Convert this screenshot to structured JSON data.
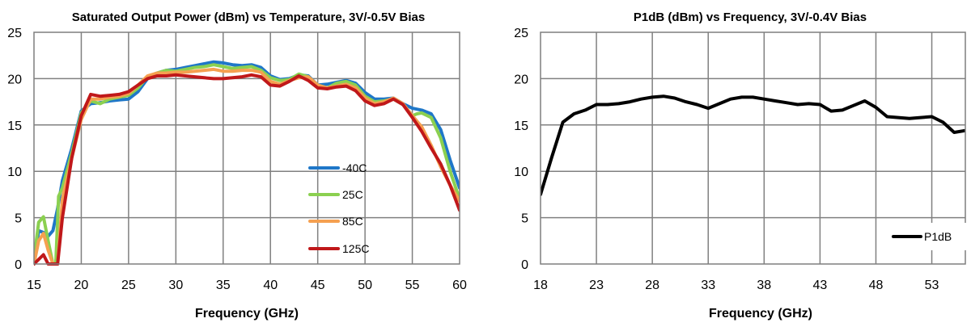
{
  "chart_data": [
    {
      "type": "line",
      "title": "Saturated Output Power (dBm) vs Temperature, 3V/-0.5V Bias",
      "xlabel": "Frequency (GHz)",
      "ylabel": "",
      "xlim": [
        15,
        60
      ],
      "ylim": [
        0,
        25
      ],
      "xticks": [
        "15",
        "20",
        "25",
        "30",
        "35",
        "40",
        "45",
        "50",
        "55",
        "60"
      ],
      "yticks": [
        "0",
        "5",
        "10",
        "15",
        "20",
        "25"
      ],
      "grid": true,
      "legend_position": "lower-right",
      "series": [
        {
          "name": "-40C",
          "color": "#1f77c8",
          "x": [
            15,
            15.5,
            16,
            16.5,
            17,
            17.5,
            18,
            19,
            20,
            21,
            22,
            23,
            24,
            25,
            26,
            27,
            28,
            29,
            30,
            31,
            32,
            33,
            34,
            35,
            36,
            37,
            38,
            39,
            40,
            41,
            42,
            43,
            44,
            45,
            46,
            47,
            48,
            49,
            50,
            51,
            52,
            53,
            54,
            55,
            56,
            57,
            58,
            59,
            60
          ],
          "y": [
            0,
            3.6,
            3.4,
            3,
            3.6,
            6,
            9,
            12.5,
            16.5,
            17.3,
            17.4,
            17.6,
            17.7,
            17.8,
            18.6,
            20,
            20.6,
            20.9,
            21.0,
            21.2,
            21.4,
            21.6,
            21.8,
            21.7,
            21.5,
            21.4,
            21.5,
            21.2,
            20.3,
            19.9,
            20.0,
            20.4,
            20.3,
            19.3,
            19.4,
            19.6,
            19.8,
            19.5,
            18.5,
            17.8,
            17.8,
            17.9,
            17.3,
            16.8,
            16.6,
            16.2,
            14.5,
            11.2,
            8.2
          ]
        },
        {
          "name": "25C",
          "color": "#8bd050",
          "x": [
            15,
            15.5,
            16,
            16.5,
            17,
            17.3,
            17.6,
            18,
            19,
            20,
            21,
            22,
            23,
            24,
            25,
            26,
            27,
            28,
            29,
            30,
            31,
            32,
            33,
            34,
            35,
            36,
            37,
            38,
            39,
            40,
            41,
            42,
            43,
            44,
            45,
            46,
            47,
            48,
            49,
            50,
            51,
            52,
            53,
            54,
            55,
            55.5,
            56,
            57,
            58,
            59,
            60
          ],
          "y": [
            0.5,
            4.5,
            5.1,
            2.5,
            0,
            0,
            7.3,
            8.2,
            12,
            16.3,
            17.6,
            17.3,
            17.8,
            18.0,
            18.2,
            19.0,
            20.2,
            20.6,
            20.9,
            20.8,
            21.0,
            21.2,
            21.3,
            21.5,
            21.3,
            21.1,
            21.2,
            21.3,
            20.9,
            20.1,
            19.8,
            19.9,
            20.5,
            20.2,
            19.3,
            19.0,
            19.5,
            19.7,
            19.3,
            18.1,
            17.5,
            17.6,
            17.8,
            17.2,
            16.0,
            16.2,
            16.3,
            15.8,
            13.6,
            10.0,
            7.0
          ]
        },
        {
          "name": "85C",
          "color": "#f5a050",
          "x": [
            15,
            15.5,
            16,
            16.5,
            17,
            17.5,
            18,
            19,
            20,
            21,
            22,
            23,
            24,
            25,
            26,
            27,
            28,
            29,
            30,
            31,
            32,
            33,
            34,
            35,
            36,
            37,
            38,
            39,
            40,
            41,
            42,
            43,
            44,
            45,
            46,
            47,
            48,
            49,
            50,
            51,
            52,
            53,
            54,
            55,
            56,
            57,
            58,
            59,
            60
          ],
          "y": [
            0,
            2.5,
            3.3,
            1.5,
            0,
            0,
            7,
            11.5,
            15.6,
            17.8,
            17.8,
            18.0,
            18.1,
            18.4,
            19.3,
            20.3,
            20.6,
            20.6,
            20.7,
            20.7,
            20.8,
            20.9,
            21.0,
            20.8,
            20.8,
            20.9,
            20.9,
            20.7,
            19.7,
            19.4,
            19.8,
            20.1,
            20.2,
            19.3,
            19.0,
            19.2,
            19.4,
            19.0,
            17.9,
            17.3,
            17.5,
            17.9,
            17.3,
            16.0,
            14.8,
            12.8,
            10.5,
            8.5,
            6.8
          ]
        },
        {
          "name": "125C",
          "color": "#c0181a",
          "x": [
            15,
            15.5,
            16,
            16.5,
            17,
            17.5,
            18,
            19,
            20,
            21,
            22,
            23,
            24,
            25,
            26,
            27,
            28,
            29,
            30,
            31,
            32,
            33,
            34,
            35,
            36,
            37,
            38,
            39,
            40,
            41,
            42,
            43,
            44,
            45,
            46,
            47,
            48,
            49,
            50,
            51,
            52,
            53,
            54,
            55,
            56,
            57,
            58,
            59,
            60
          ],
          "y": [
            0,
            0.5,
            1.0,
            0,
            0,
            0,
            5,
            11.5,
            16,
            18.3,
            18.1,
            18.2,
            18.3,
            18.6,
            19.3,
            20.0,
            20.3,
            20.3,
            20.4,
            20.3,
            20.2,
            20.1,
            20.0,
            20.0,
            20.1,
            20.2,
            20.4,
            20.2,
            19.3,
            19.2,
            19.7,
            20.3,
            19.8,
            19.0,
            18.9,
            19.1,
            19.2,
            18.7,
            17.6,
            17.1,
            17.3,
            17.8,
            17.2,
            15.8,
            14.3,
            12.5,
            10.8,
            8.5,
            5.8
          ]
        }
      ]
    },
    {
      "type": "line",
      "title": "P1dB (dBm) vs Frequency, 3V/-0.4V Bias",
      "xlabel": "Frequency (GHz)",
      "ylabel": "",
      "xlim": [
        18,
        56
      ],
      "ylim": [
        0,
        25
      ],
      "xticks": [
        "18",
        "23",
        "28",
        "33",
        "38",
        "43",
        "48",
        "53"
      ],
      "yticks": [
        "0",
        "5",
        "10",
        "15",
        "20",
        "25"
      ],
      "grid": true,
      "legend_position": "lower-right",
      "series": [
        {
          "name": "P1dB",
          "color": "#000000",
          "x": [
            18,
            19,
            20,
            21,
            22,
            23,
            24,
            25,
            26,
            27,
            28,
            29,
            30,
            31,
            32,
            33,
            34,
            35,
            36,
            37,
            38,
            39,
            40,
            41,
            42,
            43,
            44,
            45,
            46,
            47,
            48,
            49,
            50,
            51,
            52,
            53,
            54,
            55,
            56
          ],
          "y": [
            7.5,
            11.5,
            15.3,
            16.2,
            16.6,
            17.2,
            17.2,
            17.3,
            17.5,
            17.8,
            18.0,
            18.1,
            17.9,
            17.5,
            17.2,
            16.8,
            17.3,
            17.8,
            18.0,
            18.0,
            17.8,
            17.6,
            17.4,
            17.2,
            17.3,
            17.2,
            16.5,
            16.6,
            17.1,
            17.6,
            16.9,
            15.9,
            15.8,
            15.7,
            15.8,
            15.9,
            15.3,
            14.2,
            14.4
          ]
        }
      ]
    }
  ]
}
